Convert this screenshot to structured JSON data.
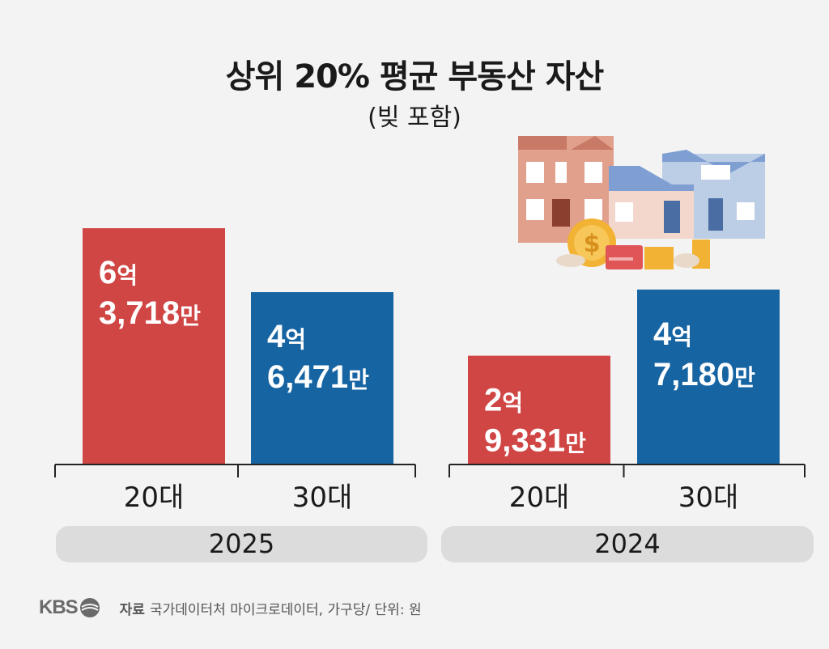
{
  "title": "상위 20% 평균 부동산 자산",
  "subtitle": "(빚 포함)",
  "footer": {
    "logo": "KBS",
    "source_label": "자료",
    "source_text": "국가데이터처 마이크로데이터, 가구당/ 단위: 원"
  },
  "chart_data": {
    "type": "bar",
    "ylabel": "",
    "groups": [
      {
        "year": "2025",
        "bars": [
          {
            "category": "20대",
            "value": 637180000,
            "label_line1": "6억",
            "label_line2": "3,718만",
            "color": "#cf4645"
          },
          {
            "category": "30대",
            "value": 464710000,
            "label_line1": "4억",
            "label_line2": "6,471만",
            "color": "#1764a3"
          }
        ]
      },
      {
        "year": "2024",
        "bars": [
          {
            "category": "20대",
            "value": 293310000,
            "label_line1": "2억",
            "label_line2": "9,331만",
            "color": "#cf4645"
          },
          {
            "category": "30대",
            "value": 471800000,
            "label_line1": "4억",
            "label_line2": "7,180만",
            "color": "#1764a3"
          }
        ]
      }
    ]
  }
}
